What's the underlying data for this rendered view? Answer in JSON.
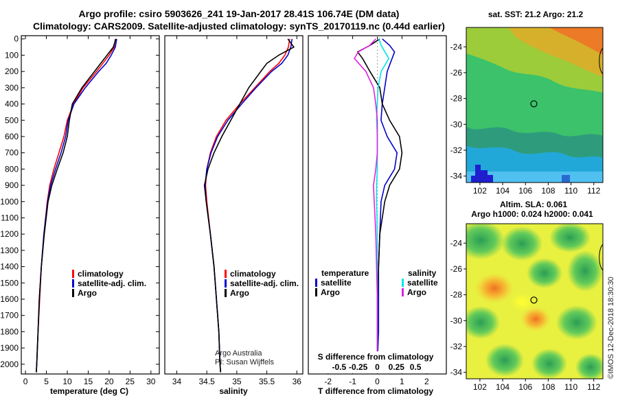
{
  "title_line1": "Argo profile: csiro 5903626_241 19-Jan-2017 28.41S 106.74E (DM data)",
  "title_line2": "Climatology: CARS2009. Satellite-adjusted climatology: synTS_20170119.nc (0.44d earlier)",
  "colors": {
    "climatology": "#ff0000",
    "satellite": "#0000cc",
    "argo": "#000000",
    "salinity_satellite": "#00e5e5",
    "salinity_argo": "#e020e0"
  },
  "depth_ticks": [
    "0",
    "100",
    "200",
    "300",
    "400",
    "500",
    "600",
    "700",
    "800",
    "900",
    "1000",
    "1100",
    "1200",
    "1300",
    "1400",
    "1500",
    "1600",
    "1700",
    "1800",
    "1900",
    "2000"
  ],
  "credits": {
    "line1": "Argo Australia",
    "line2": "PI: Susan Wijffels",
    "imos": "©IMOS 12-Dec-2018 18:30:30"
  },
  "chart_data": [
    {
      "type": "line",
      "id": "temperature",
      "xlabel": "temperature (deg C)",
      "ylabel": "depth",
      "xlim": [
        -1,
        32
      ],
      "ylim": [
        2060,
        -20
      ],
      "xticks": [
        0,
        5,
        10,
        15,
        20,
        25,
        30
      ],
      "legend": [
        "climatology",
        "satellite-adj. clim.",
        "Argo"
      ],
      "series": [
        {
          "name": "climatology",
          "depth": [
            0,
            50,
            100,
            150,
            200,
            300,
            400,
            500,
            600,
            700,
            800,
            900,
            1000,
            1200,
            1400,
            1600,
            1800,
            2000,
            2050
          ],
          "values": [
            21.5,
            21.2,
            20.0,
            18.5,
            17.0,
            13.8,
            11.5,
            10.0,
            9.2,
            8.0,
            6.8,
            5.8,
            5.2,
            4.4,
            3.8,
            3.4,
            3.0,
            2.7,
            2.6
          ]
        },
        {
          "name": "satellite-adj. clim.",
          "depth": [
            0,
            50,
            100,
            150,
            200,
            300,
            400,
            500,
            600,
            700,
            800,
            900,
            1000,
            1200,
            1400,
            1600,
            1800,
            2000,
            2050
          ],
          "values": [
            21.8,
            21.5,
            20.5,
            19.3,
            17.5,
            14.3,
            11.6,
            10.2,
            9.6,
            8.5,
            7.2,
            6.0,
            5.3,
            4.4,
            3.8,
            3.3,
            3.0,
            2.7,
            2.6
          ]
        },
        {
          "name": "Argo",
          "depth": [
            0,
            50,
            100,
            150,
            200,
            300,
            400,
            500,
            600,
            700,
            800,
            900,
            1000,
            1200,
            1400,
            1600,
            1800,
            2000,
            2050
          ],
          "values": [
            21.6,
            21.0,
            19.5,
            18.0,
            16.5,
            13.5,
            11.2,
            10.5,
            10.0,
            9.0,
            7.6,
            6.3,
            5.4,
            4.5,
            3.8,
            3.3,
            3.0,
            2.7,
            2.6
          ]
        }
      ]
    },
    {
      "type": "line",
      "id": "salinity",
      "xlabel": "salinity",
      "ylabel": "depth",
      "xlim": [
        33.8,
        36.1
      ],
      "ylim": [
        2060,
        -20
      ],
      "xticks": [
        34,
        34.5,
        35,
        35.5,
        36
      ],
      "legend": [
        "climatology",
        "satellite-adj. clim.",
        "Argo"
      ],
      "series": [
        {
          "name": "climatology",
          "depth": [
            0,
            50,
            100,
            150,
            200,
            300,
            400,
            500,
            600,
            700,
            800,
            900,
            1000,
            1200,
            1400,
            1600,
            1800,
            2000,
            2050
          ],
          "values": [
            35.88,
            35.86,
            35.8,
            35.7,
            35.55,
            35.3,
            35.05,
            34.82,
            34.66,
            34.56,
            34.5,
            34.48,
            34.5,
            34.56,
            34.62,
            34.66,
            34.7,
            34.72,
            34.73
          ]
        },
        {
          "name": "satellite-adj. clim.",
          "depth": [
            0,
            50,
            100,
            150,
            200,
            300,
            400,
            500,
            600,
            700,
            800,
            900,
            1000,
            1200,
            1400,
            1600,
            1800,
            2000,
            2050
          ],
          "values": [
            35.92,
            35.9,
            35.85,
            35.75,
            35.58,
            35.32,
            35.08,
            34.85,
            34.68,
            34.57,
            34.5,
            34.47,
            34.49,
            34.56,
            34.62,
            34.66,
            34.7,
            34.72,
            34.73
          ]
        },
        {
          "name": "Argo",
          "depth": [
            0,
            50,
            100,
            150,
            200,
            300,
            400,
            500,
            600,
            700,
            800,
            900,
            1000,
            1200,
            1400,
            1600,
            1800,
            2000,
            2050
          ],
          "values": [
            35.85,
            35.95,
            35.7,
            35.5,
            35.4,
            35.2,
            35.05,
            34.9,
            34.75,
            34.62,
            34.52,
            34.46,
            34.49,
            34.56,
            34.62,
            34.66,
            34.7,
            34.72,
            34.73
          ]
        }
      ]
    },
    {
      "type": "line",
      "id": "difference",
      "xlabel": "T difference from climatology",
      "xlabel_top": "S difference from climatology",
      "xlim": [
        -2.8,
        2.8
      ],
      "ylim": [
        2060,
        -20
      ],
      "xticks": [
        -2,
        -1,
        0,
        1,
        2
      ],
      "xtick_labels": [
        "-2",
        "-1",
        "0",
        "1",
        "2"
      ],
      "s_xticks": [
        -0.5,
        -0.25,
        0,
        0.25,
        0.5
      ],
      "s_xtick_labels": [
        "-0.5",
        "-0.25",
        "0",
        "0.25",
        "0.5"
      ],
      "legend_titles": [
        "temperature",
        "salinity"
      ],
      "legend": [
        "satellite",
        "Argo"
      ],
      "series": [
        {
          "name": "temperature satellite",
          "depth": [
            0,
            40,
            80,
            120,
            200,
            300,
            400,
            500,
            600,
            700,
            800,
            900,
            1000,
            1200,
            1400,
            1600,
            1800,
            2000
          ],
          "values": [
            0.2,
            0.5,
            0.7,
            0.6,
            0.4,
            0.3,
            0.2,
            0.15,
            0.4,
            0.8,
            0.7,
            0.3,
            0.15,
            0.1,
            0.05,
            0.05,
            0.05,
            0.0
          ]
        },
        {
          "name": "temperature Argo",
          "depth": [
            0,
            40,
            80,
            120,
            200,
            300,
            400,
            500,
            600,
            700,
            800,
            900,
            1000,
            1200,
            1400,
            1600,
            1800,
            2000
          ],
          "values": [
            0.1,
            -0.3,
            -0.8,
            -0.6,
            -0.3,
            0.1,
            0.2,
            0.5,
            0.9,
            1.0,
            0.9,
            0.5,
            0.3,
            0.1,
            0.05,
            0.0,
            0.0,
            0.0
          ]
        },
        {
          "name": "salinity satellite",
          "depth": [
            0,
            40,
            80,
            120,
            200,
            300,
            400,
            500,
            600,
            700,
            800,
            900,
            1000,
            1200,
            1400,
            1600,
            1800,
            2000
          ],
          "values": [
            0.02,
            0.05,
            0.1,
            0.15,
            0.05,
            0.01,
            0.0,
            -0.01,
            0.0,
            0.0,
            0.0,
            -0.01,
            -0.01,
            0.0,
            0.0,
            0.0,
            0.0,
            0.0
          ]
        },
        {
          "name": "salinity Argo",
          "depth": [
            0,
            40,
            80,
            120,
            200,
            300,
            400,
            500,
            600,
            700,
            800,
            900,
            1000,
            1200,
            1400,
            1600,
            1800,
            2000
          ],
          "values": [
            -0.02,
            -0.1,
            -0.25,
            -0.3,
            -0.15,
            -0.05,
            -0.02,
            0.0,
            0.0,
            0.0,
            -0.02,
            -0.05,
            -0.04,
            -0.02,
            -0.01,
            0.0,
            0.0,
            0.0
          ]
        }
      ]
    },
    {
      "type": "heatmap",
      "id": "sst_map",
      "title": "sat. SST: 21.2 Argo: 21.2",
      "xlim": [
        100.8,
        112.8
      ],
      "ylim": [
        -34.5,
        -22.5
      ],
      "xticks": [
        102,
        104,
        106,
        108,
        110,
        112
      ],
      "yticks": [
        -24,
        -26,
        -28,
        -30,
        -32,
        -34
      ],
      "marker": {
        "lon": 106.74,
        "lat": -28.41
      }
    },
    {
      "type": "heatmap",
      "id": "sla_map",
      "title_line1": "Altim. SLA: 0.061",
      "title_line2": "Argo h1000: 0.024 h2000: 0.041",
      "xlim": [
        100.8,
        112.8
      ],
      "ylim": [
        -34.5,
        -22.5
      ],
      "xticks": [
        102,
        104,
        106,
        108,
        110,
        112
      ],
      "yticks": [
        -24,
        -26,
        -28,
        -30,
        -32,
        -34
      ],
      "marker": {
        "lon": 106.74,
        "lat": -28.41
      }
    }
  ]
}
